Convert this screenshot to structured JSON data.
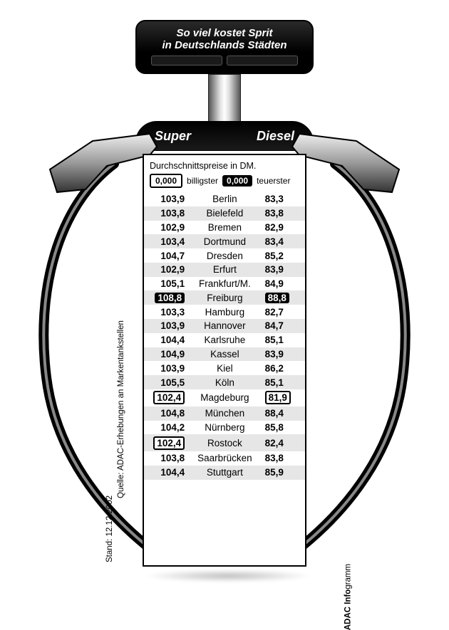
{
  "title_line1": "So viel kostet Sprit",
  "title_line2": "in Deutschlands Städten",
  "col_super": "Super",
  "col_diesel": "Diesel",
  "legend_line": "Durchschnittspreise in DM.",
  "legend_chip_value": "0,000",
  "legend_billig": "billigster",
  "legend_teuer": "teuerster",
  "stand": "Stand: 12.12.2002",
  "quelle": "Quelle: ADAC-Erhebungen an Markentankstellen",
  "brand_bold": "ADAC Info",
  "brand_rest": "gramm",
  "colors": {
    "bg": "#ffffff",
    "ink": "#000000",
    "shade": "#e6e6e6",
    "metal_light": "#dddddd",
    "metal_dark": "#555555"
  },
  "teuer_badge_bg": "#000000",
  "teuer_badge_fg": "#ffffff",
  "billig_badge_border": "#000000",
  "font_family": "Arial",
  "title_fontsize_pt": 13,
  "value_fontsize_pt": 10,
  "city_fontsize_pt": 10,
  "rows": [
    {
      "super": "103,9",
      "city": "Berlin",
      "diesel": "83,3",
      "shade": false
    },
    {
      "super": "103,8",
      "city": "Bielefeld",
      "diesel": "83,8",
      "shade": true
    },
    {
      "super": "102,9",
      "city": "Bremen",
      "diesel": "82,9",
      "shade": false
    },
    {
      "super": "103,4",
      "city": "Dortmund",
      "diesel": "83,4",
      "shade": true
    },
    {
      "super": "104,7",
      "city": "Dresden",
      "diesel": "85,2",
      "shade": false
    },
    {
      "super": "102,9",
      "city": "Erfurt",
      "diesel": "83,9",
      "shade": true
    },
    {
      "super": "105,1",
      "city": "Frankfurt/M.",
      "diesel": "84,9",
      "shade": false
    },
    {
      "super": "108,8",
      "city": "Freiburg",
      "diesel": "88,8",
      "shade": true,
      "super_mark": "teuer",
      "diesel_mark": "teuer"
    },
    {
      "super": "103,3",
      "city": "Hamburg",
      "diesel": "82,7",
      "shade": false
    },
    {
      "super": "103,9",
      "city": "Hannover",
      "diesel": "84,7",
      "shade": true
    },
    {
      "super": "104,4",
      "city": "Karlsruhe",
      "diesel": "85,1",
      "shade": false
    },
    {
      "super": "104,9",
      "city": "Kassel",
      "diesel": "83,9",
      "shade": true
    },
    {
      "super": "103,9",
      "city": "Kiel",
      "diesel": "86,2",
      "shade": false
    },
    {
      "super": "105,5",
      "city": "Köln",
      "diesel": "85,1",
      "shade": true
    },
    {
      "super": "102,4",
      "city": "Magdeburg",
      "diesel": "81,9",
      "shade": false,
      "super_mark": "billig",
      "diesel_mark": "billig"
    },
    {
      "super": "104,8",
      "city": "München",
      "diesel": "88,4",
      "shade": true
    },
    {
      "super": "104,2",
      "city": "Nürnberg",
      "diesel": "85,8",
      "shade": false
    },
    {
      "super": "102,4",
      "city": "Rostock",
      "diesel": "82,4",
      "shade": true,
      "super_mark": "billig"
    },
    {
      "super": "103,8",
      "city": "Saarbrücken",
      "diesel": "83,8",
      "shade": false
    },
    {
      "super": "104,4",
      "city": "Stuttgart",
      "diesel": "85,9",
      "shade": true
    }
  ]
}
